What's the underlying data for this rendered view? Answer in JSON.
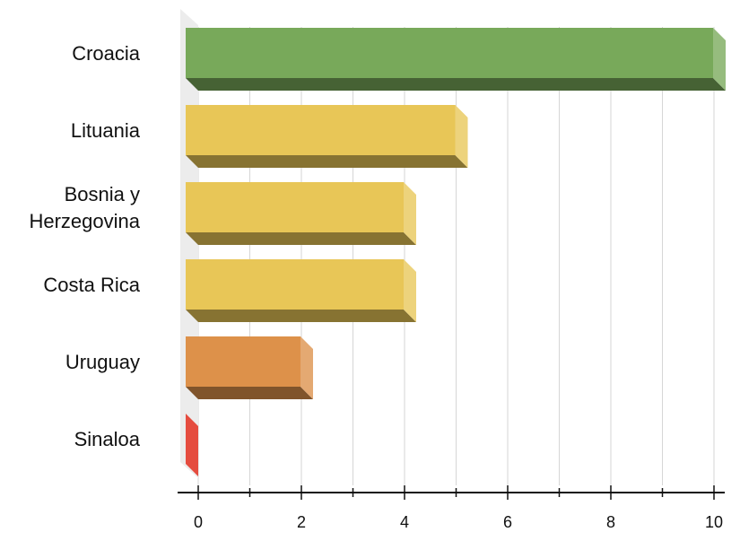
{
  "chart_data": {
    "type": "bar",
    "orientation": "horizontal",
    "style": "3d",
    "categories": [
      [
        "Croacia"
      ],
      [
        "Lituania"
      ],
      [
        "Bosnia y",
        "Herzegovina"
      ],
      [
        "Costa Rica"
      ],
      [
        "Uruguay"
      ],
      [
        "Sinaloa"
      ]
    ],
    "values": [
      10,
      5,
      4,
      4,
      2,
      0
    ],
    "colors": [
      "#78a95a",
      "#e8c657",
      "#e8c657",
      "#e8c657",
      "#dd914a",
      "#e54c3f"
    ],
    "xlim": [
      0,
      10
    ],
    "xticks": [
      "0",
      "2",
      "4",
      "6",
      "8",
      "10"
    ],
    "grid": true,
    "title": "",
    "xlabel": "",
    "ylabel": ""
  }
}
